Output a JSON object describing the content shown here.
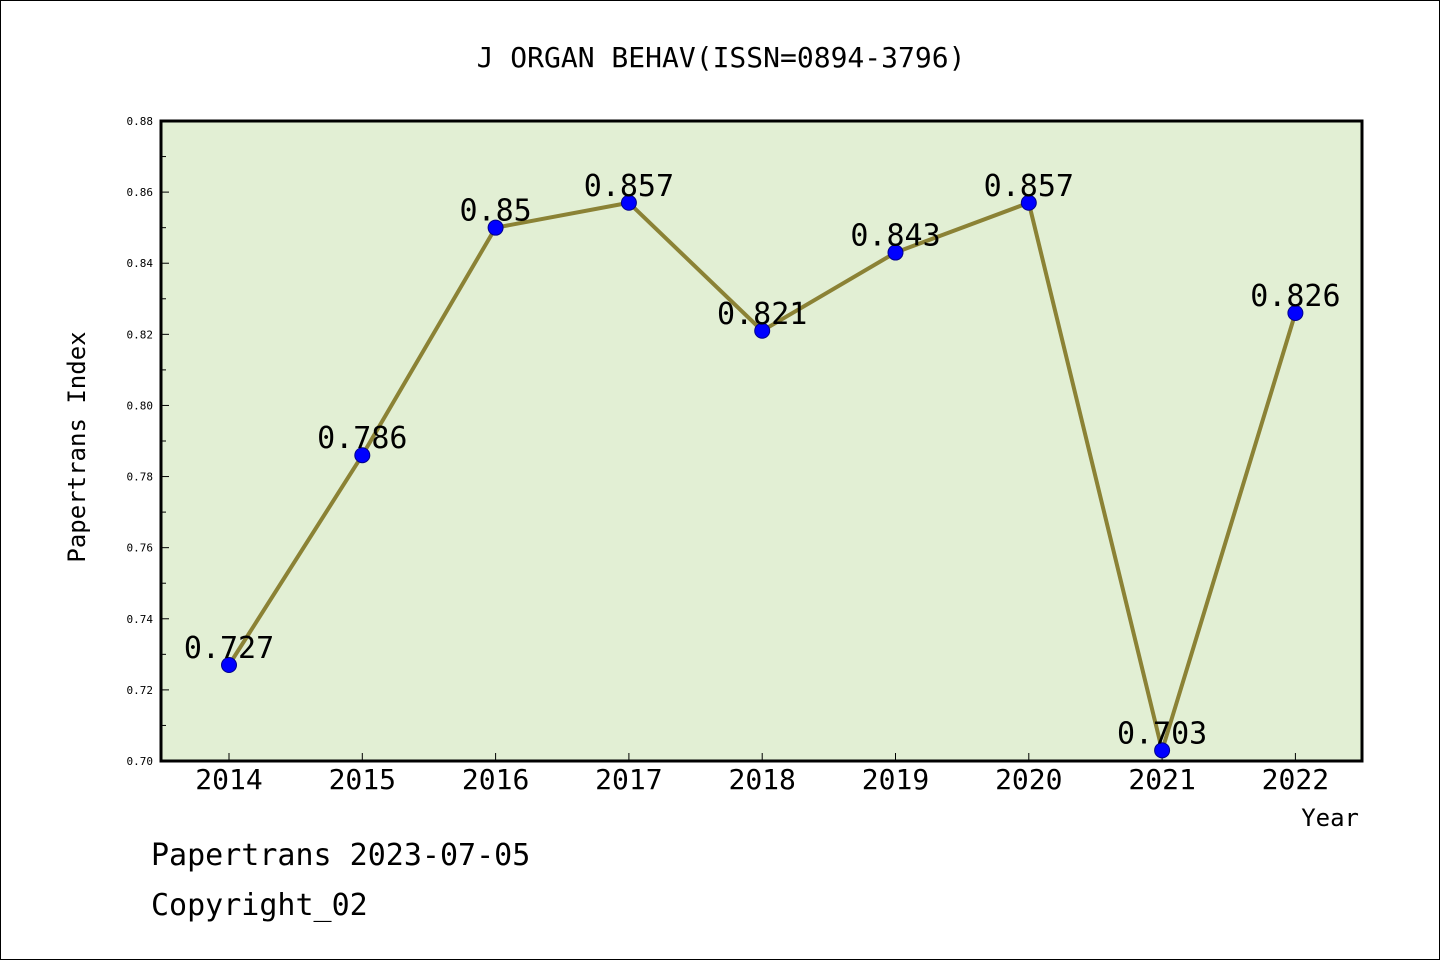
{
  "colors": {
    "plot_background": "#e2efd4",
    "line": "#8b8235",
    "marker": "#0000ff"
  },
  "chart_data": {
    "type": "line",
    "title": "J ORGAN BEHAV(ISSN=0894-3796)",
    "xlabel": "Year",
    "ylabel": "Papertrans Index",
    "categories": [
      "2014",
      "2015",
      "2016",
      "2017",
      "2018",
      "2019",
      "2020",
      "2021",
      "2022"
    ],
    "values": [
      0.727,
      0.786,
      0.85,
      0.857,
      0.821,
      0.843,
      0.857,
      0.703,
      0.826
    ],
    "data_labels": [
      "0.727",
      "0.786",
      "0.85",
      "0.857",
      "0.821",
      "0.843",
      "0.857",
      "0.703",
      "0.826"
    ],
    "ylim": [
      0.7,
      0.88
    ],
    "yticks": [
      "0.70",
      "0.72",
      "0.74",
      "0.76",
      "0.78",
      "0.80",
      "0.82",
      "0.84",
      "0.86",
      "0.88"
    ],
    "grid": false,
    "legend": "none"
  },
  "footer": {
    "line1": "Papertrans 2023-07-05",
    "line2": "Copyright_02"
  }
}
